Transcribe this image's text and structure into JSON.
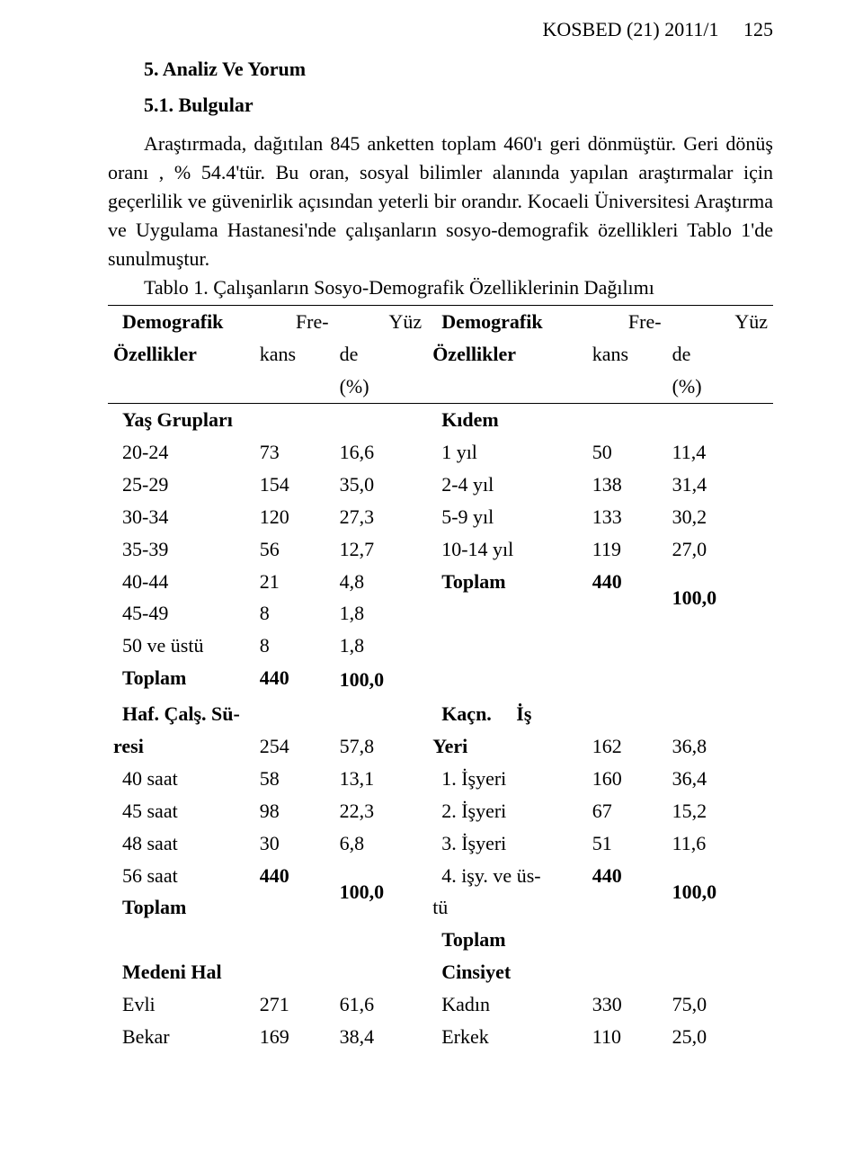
{
  "runningHead": {
    "journal": "KOSBED (21) 2011/1",
    "page": "125"
  },
  "headings": {
    "section": "5.   Analiz Ve Yorum",
    "sub": "5.1. Bulgular",
    "tableCaption": "Tablo 1. Çalışanların  Sosyo-Demografik Özelliklerinin Dağılımı"
  },
  "paragraph": "Araştırmada, dağıtılan 845 anketten toplam 460'ı geri dönmüştür. Geri dönüş oranı , % 54.4'tür. Bu oran, sosyal bilimler alanında yapılan araştırmalar için geçerlilik ve güvenirlik açısından yeterli bir orandır. Kocaeli Üniversitesi Araştırma ve Uygulama Hastanesi'nde çalışanların sosyo-demografik özellikleri Tablo 1'de sunulmuştur.",
  "tableHeaders": {
    "leftCol": "Demografik Özellikler",
    "freq": "Frekans",
    "pct": "Yüzde (%)",
    "rightCol": "Demografik Özellikler"
  },
  "groups": {
    "age": {
      "title": "Yaş Grupları",
      "rows": [
        {
          "label": "20-24",
          "freq": "73",
          "pct": "16,6"
        },
        {
          "label": "25-29",
          "freq": "154",
          "pct": "35,0"
        },
        {
          "label": "30-34",
          "freq": "120",
          "pct": "27,3"
        },
        {
          "label": "35-39",
          "freq": "56",
          "pct": "12,7"
        },
        {
          "label": "40-44",
          "freq": "21",
          "pct": "4,8"
        },
        {
          "label": "45-49",
          "freq": "8",
          "pct": "1,8"
        },
        {
          "label": "50 ve üstü",
          "freq": "8",
          "pct": "1,8"
        }
      ],
      "totalLabel": "Toplam",
      "totalFreq": "440",
      "totalPct": "100,0"
    },
    "tenure": {
      "title": "Kıdem",
      "rows": [
        {
          "label": "1 yıl",
          "freq": "50",
          "pct": "11,4"
        },
        {
          "label": "2-4 yıl",
          "freq": "138",
          "pct": "31,4"
        },
        {
          "label": "5-9 yıl",
          "freq": "133",
          "pct": "30,2"
        },
        {
          "label": "10-14 yıl",
          "freq": "119",
          "pct": "27,0"
        }
      ],
      "totalLabel": "Toplam",
      "totalFreq": "440",
      "totalPct": "100,0"
    },
    "hours": {
      "title": "Haf. Çalş. Süresi",
      "rows": [
        {
          "label": "40 saat",
          "freq": "254",
          "pct": "57,8"
        },
        {
          "label": "45 saat",
          "freq": "58",
          "pct": "13,1"
        },
        {
          "label": "48 saat",
          "freq": "98",
          "pct": "22,3"
        },
        {
          "label": "56 saat",
          "freq": "30",
          "pct": "6,8"
        }
      ],
      "totalLabel": "Toplam",
      "totalFreq": "440",
      "totalPct": "100,0"
    },
    "workplaces": {
      "title": "Kaçn. İş Yeri",
      "rows": [
        {
          "label": "1. İşyeri",
          "freq": "162",
          "pct": "36,8"
        },
        {
          "label": "2. İşyeri",
          "freq": "160",
          "pct": "36,4"
        },
        {
          "label": "3. İşyeri",
          "freq": "67",
          "pct": "15,2"
        },
        {
          "label": "4. işy. ve üstü",
          "freq": "51",
          "pct": "11,6"
        }
      ],
      "totalLabel": "Toplam",
      "totalFreq": "440",
      "totalPct": "100,0"
    },
    "marital": {
      "title": "Medeni Hal",
      "rows": [
        {
          "label": "Evli",
          "freq": "271",
          "pct": "61,6"
        },
        {
          "label": "Bekar",
          "freq": "169",
          "pct": "38,4"
        }
      ]
    },
    "gender": {
      "title": "Cinsiyet",
      "rows": [
        {
          "label": "Kadın",
          "freq": "330",
          "pct": "75,0"
        },
        {
          "label": "Erkek",
          "freq": "110",
          "pct": "25,0"
        }
      ]
    }
  }
}
